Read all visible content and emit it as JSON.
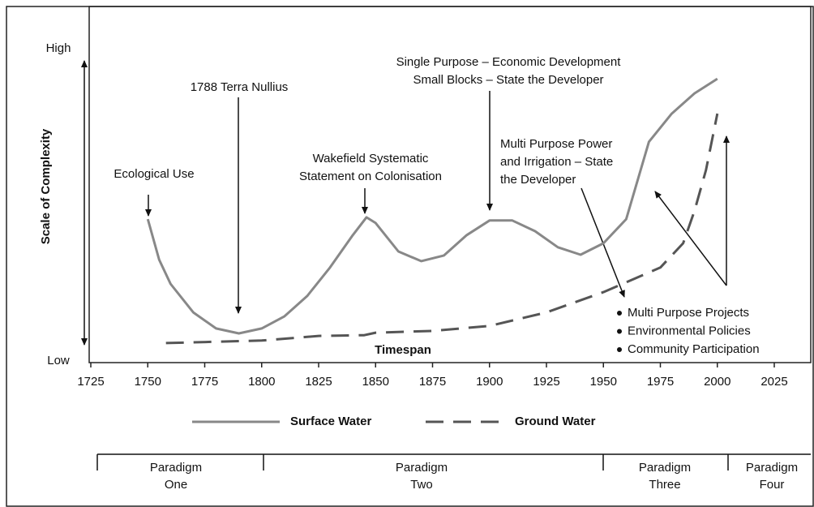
{
  "chart_data": {
    "type": "line",
    "y_label": "Scale of Complexity",
    "y_high": "High",
    "y_low": "Low",
    "x_label": "Timespan",
    "xlim": [
      1725,
      2025
    ],
    "xticks": [
      1725,
      1750,
      1775,
      1800,
      1825,
      1850,
      1875,
      1900,
      1925,
      1950,
      1975,
      2000,
      2025
    ],
    "ylim": [
      0,
      100
    ],
    "series": [
      {
        "name": "Surface Water",
        "color": "#888888",
        "dash": false,
        "x": [
          1750,
          1755,
          1760,
          1770,
          1780,
          1790,
          1800,
          1810,
          1820,
          1830,
          1840,
          1846,
          1850,
          1860,
          1870,
          1880,
          1890,
          1900,
          1910,
          1920,
          1930,
          1940,
          1950,
          1960,
          1970,
          1980,
          1990,
          2000
        ],
        "values": [
          40.3,
          28.9,
          22.1,
          14.1,
          9.6,
          8.2,
          9.6,
          13.0,
          18.7,
          26.7,
          35.8,
          40.8,
          39.2,
          31.2,
          28.5,
          30.1,
          35.8,
          39.9,
          39.9,
          36.9,
          32.4,
          30.3,
          33.5,
          40.3,
          62.0,
          69.9,
          75.6,
          79.7
        ]
      },
      {
        "name": "Ground Water",
        "color": "#555555",
        "dash": true,
        "x": [
          1758,
          1800,
          1825,
          1845,
          1850,
          1875,
          1900,
          1925,
          1950,
          1975,
          1985,
          1990,
          1995,
          2000
        ],
        "values": [
          5.5,
          6.2,
          7.5,
          7.7,
          8.4,
          8.9,
          10.3,
          14.1,
          19.8,
          26.7,
          33.5,
          42.6,
          54.0,
          69.9
        ]
      }
    ],
    "annotations": [
      {
        "lines": [
          "Ecological Use"
        ]
      },
      {
        "lines": [
          "1788 Terra Nullius"
        ]
      },
      {
        "lines": [
          "Wakefield Systematic",
          "Statement on Colonisation"
        ]
      },
      {
        "lines": [
          "Single Purpose – Economic Development",
          "Small Blocks – State the Developer"
        ]
      },
      {
        "lines": [
          "Multi Purpose Power",
          "and Irrigation – State",
          "the Developer"
        ]
      }
    ],
    "bullets": [
      "Multi Purpose Projects",
      "Environmental Policies",
      "Community Participation"
    ],
    "paradigms": [
      {
        "lines": [
          "Paradigm",
          "One"
        ]
      },
      {
        "lines": [
          "Paradigm",
          "Two"
        ]
      },
      {
        "lines": [
          "Paradigm",
          "Three"
        ]
      },
      {
        "lines": [
          "Paradigm",
          "Four"
        ]
      }
    ]
  }
}
